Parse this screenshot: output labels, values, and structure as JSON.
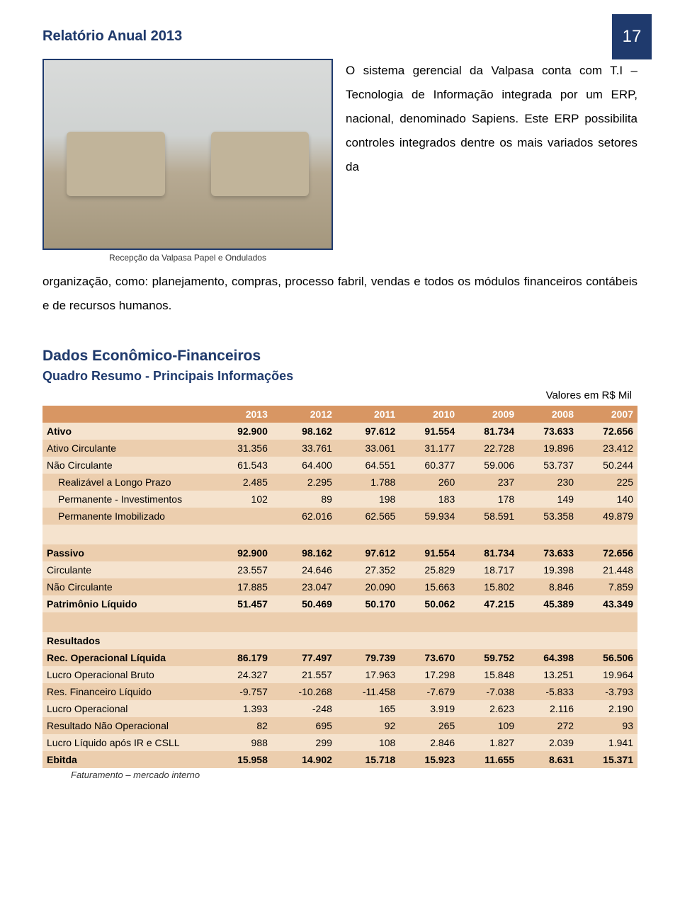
{
  "page": {
    "number": "17",
    "doc_title": "Relatório Anual 2013"
  },
  "intro": {
    "caption": "Recepção da Valpasa Papel e Ondulados",
    "para1": "O sistema gerencial da Valpasa conta com T.I – Tecnologia de Informação integrada por um ERP, nacional, denominado Sapiens. Este ERP possibilita controles integrados dentre os mais variados setores da",
    "para2": "organização, como: planejamento, compras, processo fabril, vendas e todos os módulos financeiros contábeis e de recursos humanos."
  },
  "section": {
    "h1": "Dados Econômico-Financeiros",
    "h2": "Quadro Resumo - Principais Informações",
    "unit": "Valores em R$ Mil",
    "footnote": "Faturamento – mercado interno"
  },
  "table": {
    "years": [
      "2013",
      "2012",
      "2011",
      "2010",
      "2009",
      "2008",
      "2007"
    ],
    "rows": [
      {
        "label": "Ativo",
        "vals": [
          "92.900",
          "98.162",
          "97.612",
          "91.554",
          "81.734",
          "73.633",
          "72.656"
        ],
        "bold": true,
        "band": "light"
      },
      {
        "label": "Ativo Circulante",
        "vals": [
          "31.356",
          "33.761",
          "33.061",
          "31.177",
          "22.728",
          "19.896",
          "23.412"
        ],
        "band": "dark"
      },
      {
        "label": "Não Circulante",
        "vals": [
          "61.543",
          "64.400",
          "64.551",
          "60.377",
          "59.006",
          "53.737",
          "50.244"
        ],
        "band": "light"
      },
      {
        "label": "Realizável a Longo Prazo",
        "vals": [
          "2.485",
          "2.295",
          "1.788",
          "260",
          "237",
          "230",
          "225"
        ],
        "band": "dark",
        "indent": true
      },
      {
        "label": "Permanente - Investimentos",
        "vals": [
          "102",
          "89",
          "198",
          "183",
          "178",
          "149",
          "140"
        ],
        "band": "light",
        "indent": true
      },
      {
        "label": "Permanente Imobilizado",
        "vals": [
          "",
          "62.016",
          "62.565",
          "59.934",
          "58.591",
          "53.358",
          "49.879"
        ],
        "band": "dark",
        "indent": true
      },
      {
        "gap": true,
        "band": "light"
      },
      {
        "label": "Passivo",
        "vals": [
          "92.900",
          "98.162",
          "97.612",
          "91.554",
          "81.734",
          "73.633",
          "72.656"
        ],
        "bold": true,
        "band": "dark"
      },
      {
        "label": "Circulante",
        "vals": [
          "23.557",
          "24.646",
          "27.352",
          "25.829",
          "18.717",
          "19.398",
          "21.448"
        ],
        "band": "light"
      },
      {
        "label": "Não Circulante",
        "vals": [
          "17.885",
          "23.047",
          "20.090",
          "15.663",
          "15.802",
          "8.846",
          "7.859"
        ],
        "band": "dark"
      },
      {
        "label": "Patrimônio Líquido",
        "vals": [
          "51.457",
          "50.469",
          "50.170",
          "50.062",
          "47.215",
          "45.389",
          "43.349"
        ],
        "bold": true,
        "band": "light"
      },
      {
        "gap": true,
        "band": "dark"
      },
      {
        "label": "Resultados",
        "vals": [
          "",
          "",
          "",
          "",
          "",
          "",
          ""
        ],
        "bold": true,
        "band": "light"
      },
      {
        "label": "Rec. Operacional Líquida",
        "vals": [
          "86.179",
          "77.497",
          "79.739",
          "73.670",
          "59.752",
          "64.398",
          "56.506"
        ],
        "bold": true,
        "band": "dark"
      },
      {
        "label": "Lucro Operacional Bruto",
        "vals": [
          "24.327",
          "21.557",
          "17.963",
          "17.298",
          "15.848",
          "13.251",
          "19.964"
        ],
        "band": "light"
      },
      {
        "label": "Res. Financeiro Líquido",
        "vals": [
          "-9.757",
          "-10.268",
          "-11.458",
          "-7.679",
          "-7.038",
          "-5.833",
          "-3.793"
        ],
        "band": "dark"
      },
      {
        "label": "Lucro Operacional",
        "vals": [
          "1.393",
          "-248",
          "165",
          "3.919",
          "2.623",
          "2.116",
          "2.190"
        ],
        "band": "light"
      },
      {
        "label": "Resultado Não Operacional",
        "vals": [
          "82",
          "695",
          "92",
          "265",
          "109",
          "272",
          "93"
        ],
        "band": "dark"
      },
      {
        "label": "Lucro Líquido após IR e CSLL",
        "vals": [
          "988",
          "299",
          "108",
          "2.846",
          "1.827",
          "2.039",
          "1.941"
        ],
        "band": "light"
      },
      {
        "label": "Ebitda",
        "vals": [
          "15.958",
          "14.902",
          "15.718",
          "15.923",
          "11.655",
          "8.631",
          "15.371"
        ],
        "bold": true,
        "band": "dark"
      }
    ]
  },
  "colors": {
    "brand": "#1f3a6d",
    "th_bg": "#d89663",
    "band_light": "#f5e3ce",
    "band_dark": "#ecceae"
  }
}
